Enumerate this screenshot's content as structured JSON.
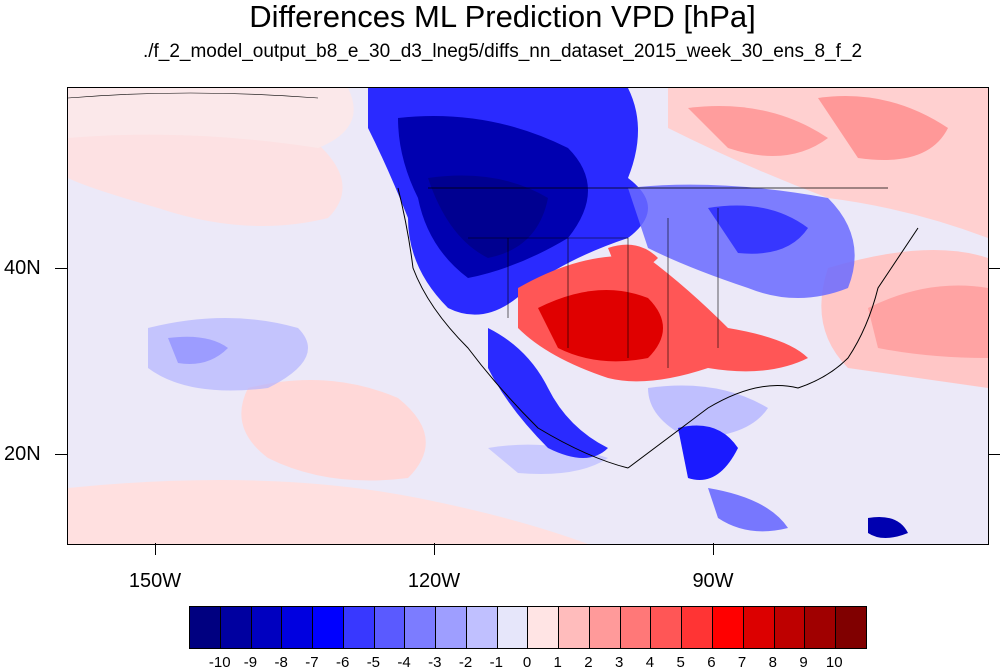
{
  "title": "Differences ML Prediction VPD [hPa]",
  "subtitle": "./f_2_model_output_b8_e_30_d3_lneg5/diffs_nn_dataset_2015_week_30_ens_8_f_2",
  "map": {
    "lat_labels": [
      "40N",
      "20N"
    ],
    "lon_labels": [
      "150W",
      "120W",
      "90W"
    ],
    "background_value_color": "#ece9f8",
    "land_colors": {
      "strong_negative": "#0000a8",
      "negative": "#2a2aff",
      "weak_negative": "#b4b4ff",
      "weak_positive": "#ffd0d0",
      "positive": "#ff6a6a",
      "strong_positive": "#e00000"
    }
  },
  "colorbar": {
    "colors": [
      "#000080",
      "#0000a0",
      "#0000c0",
      "#0000e0",
      "#0000ff",
      "#3838ff",
      "#5a5aff",
      "#7c7cff",
      "#9e9eff",
      "#c0c0ff",
      "#e6e6fa",
      "#ffe4e4",
      "#ffbcbc",
      "#ff9a9a",
      "#ff7878",
      "#ff5656",
      "#ff3434",
      "#ff0000",
      "#dc0000",
      "#be0000",
      "#a00000",
      "#800000"
    ],
    "labels": [
      "-10",
      "-9",
      "-8",
      "-7",
      "-6",
      "-5",
      "-4",
      "-3",
      "-2",
      "-1",
      "0",
      "1",
      "2",
      "3",
      "4",
      "5",
      "6",
      "7",
      "8",
      "9",
      "10"
    ]
  }
}
